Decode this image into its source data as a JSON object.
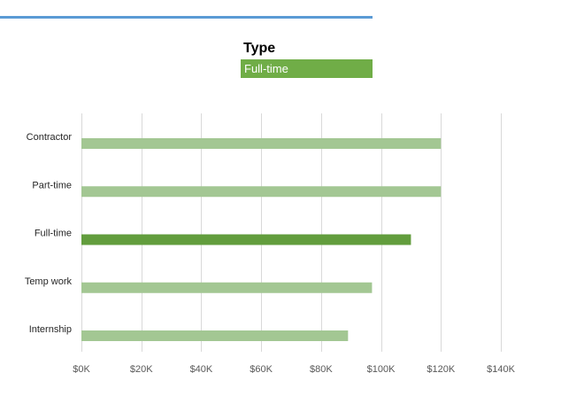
{
  "slicer": {
    "title": "Type",
    "selected": "Full-time"
  },
  "colors": {
    "top_rule": "#5b9bd5",
    "slicer_selected": "#70ad47",
    "bar_highlight": "#629d3d",
    "bar_muted": "#a3c793",
    "grid": "#d9d9d9",
    "label": "#262626",
    "tick_label": "#595959"
  },
  "chart_data": {
    "type": "bar",
    "orientation": "horizontal",
    "categories": [
      "Contractor",
      "Part-time",
      "Full-time",
      "Temp work",
      "Internship"
    ],
    "values": [
      120000,
      120000,
      110000,
      97000,
      89000
    ],
    "highlight": "Full-time",
    "xlim": [
      0,
      140000
    ],
    "xticks": [
      0,
      20000,
      40000,
      60000,
      80000,
      100000,
      120000,
      140000
    ],
    "xtick_labels": [
      "$0K",
      "$20K",
      "$40K",
      "$60K",
      "$80K",
      "$100K",
      "$120K",
      "$140K"
    ],
    "title": "",
    "xlabel": "",
    "ylabel": "",
    "grid": true,
    "legend": "none"
  }
}
